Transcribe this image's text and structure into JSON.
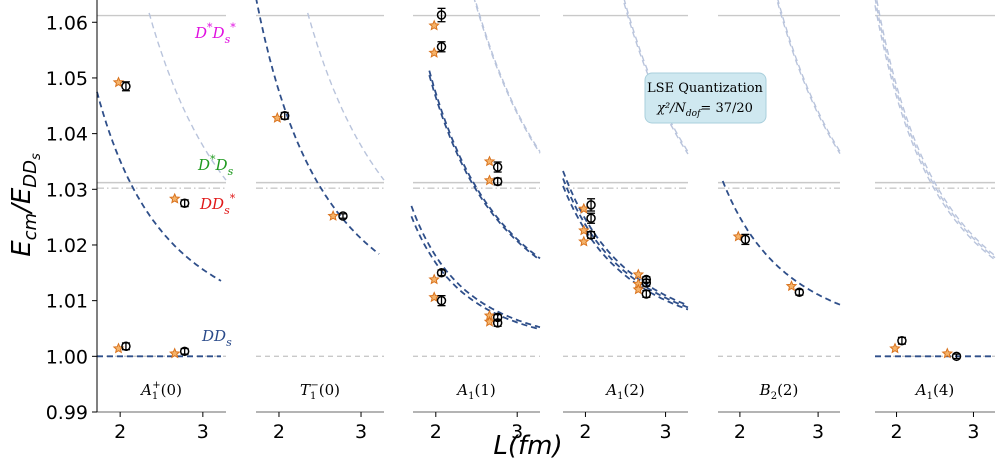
{
  "chart_data": {
    "type": "scatter",
    "title": "",
    "xlabel": "L(fm)",
    "ylabel": "E_cm/E_DDs",
    "ylim": [
      0.99,
      1.064
    ],
    "y_ticks": [
      "0.99",
      "1.00",
      "1.01",
      "1.02",
      "1.03",
      "1.04",
      "1.05",
      "1.06"
    ],
    "x_tick_labels": [
      "2",
      "3"
    ],
    "thresholds": [
      {
        "name": "D*Ds*",
        "label_main": "D",
        "value": 1.0612,
        "style": "solid",
        "color": "#c9c9c9",
        "label_color": "#e010e0"
      },
      {
        "name": "D*Ds",
        "label_main": "D",
        "value": 1.0312,
        "style": "solid",
        "color": "#c9c9c9",
        "label_color": "#1f9a1f"
      },
      {
        "name": "DDs*",
        "label_main": "DD",
        "value": 1.0302,
        "style": "dashdot",
        "color": "#c9c9c9",
        "label_color": "#e01818"
      },
      {
        "name": "DDs",
        "label_main": "DD",
        "value": 1.0,
        "style": "dashed",
        "color": "#c9c9c9",
        "label_color": "#2a4a8a"
      }
    ],
    "annotation": {
      "title": "LSE Quantization",
      "chi2_text": "χ²/N",
      "dof_sub": "dof",
      "chi2_value": "= 37/20"
    },
    "legend_markers": {
      "lattice": "circle with error bar (lattice)",
      "prediction": "orange star (LSE prediction)"
    },
    "panels": [
      {
        "label": "A1+(0)",
        "label_main": "A",
        "label_sub": "1",
        "label_sup": "+",
        "label_arg": "(0)",
        "points": [
          {
            "x": 2.07,
            "y": 1.0485,
            "err": 0.0008
          },
          {
            "x": 2.78,
            "y": 1.0275,
            "err": 0.0006
          },
          {
            "x": 2.07,
            "y": 1.0018,
            "err": 0.0006
          },
          {
            "x": 2.78,
            "y": 1.0009,
            "err": 0.0005
          }
        ],
        "stars": [
          {
            "x": 1.98,
            "y": 1.0492
          },
          {
            "x": 2.66,
            "y": 1.0283
          },
          {
            "x": 1.98,
            "y": 1.0014
          },
          {
            "x": 2.66,
            "y": 1.0005
          }
        ],
        "curves": [
          {
            "kind": "dark",
            "a": 0.1405,
            "p": 2.0,
            "xmin": 1.72,
            "xmax": 3.22
          },
          {
            "kind": "light",
            "a": 0.3406,
            "p": 2.0,
            "xmin": 2.35,
            "xmax": 3.28
          },
          {
            "kind": "flat",
            "a": 0.0,
            "p": 2.0,
            "xmin": 1.72,
            "xmax": 3.22
          }
        ]
      },
      {
        "label": "T1-(0)",
        "label_main": "T",
        "label_sub": "1",
        "label_sup": "−",
        "label_arg": "(0)",
        "points": [
          {
            "x": 2.07,
            "y": 1.0432,
            "err": 0.0006
          },
          {
            "x": 2.78,
            "y": 1.0252,
            "err": 0.0004
          }
        ],
        "stars": [
          {
            "x": 1.98,
            "y": 1.0428
          },
          {
            "x": 2.66,
            "y": 1.0252
          }
        ],
        "curves": [
          {
            "kind": "dark",
            "a": 0.1905,
            "p": 2.0,
            "xmin": 1.72,
            "xmax": 3.22
          },
          {
            "kind": "light",
            "a": 0.3406,
            "p": 2.0,
            "xmin": 2.35,
            "xmax": 3.28
          }
        ]
      },
      {
        "label": "A1(1)",
        "label_main": "A",
        "label_sub": "1",
        "label_sup": "",
        "label_arg": "(1)",
        "points": [
          {
            "x": 2.07,
            "y": 1.0613,
            "err": 0.0012
          },
          {
            "x": 2.07,
            "y": 1.0556,
            "err": 0.0009
          },
          {
            "x": 2.76,
            "y": 1.034,
            "err": 0.0009
          },
          {
            "x": 2.76,
            "y": 1.0314,
            "err": 0.0006
          },
          {
            "x": 2.07,
            "y": 1.015,
            "err": 0.0005
          },
          {
            "x": 2.07,
            "y": 1.01,
            "err": 0.0009
          },
          {
            "x": 2.76,
            "y": 1.007,
            "err": 0.0005
          },
          {
            "x": 2.76,
            "y": 1.006,
            "err": 0.0006
          }
        ],
        "stars": [
          {
            "x": 1.98,
            "y": 1.0594
          },
          {
            "x": 1.98,
            "y": 1.0545
          },
          {
            "x": 2.66,
            "y": 1.035
          },
          {
            "x": 2.66,
            "y": 1.0316
          },
          {
            "x": 1.98,
            "y": 1.0138
          },
          {
            "x": 1.98,
            "y": 1.0106
          },
          {
            "x": 2.66,
            "y": 1.0073
          },
          {
            "x": 2.66,
            "y": 1.0062
          }
        ],
        "curves": [
          {
            "kind": "dark",
            "a": 0.1862,
            "p": 2.0,
            "xmin": 1.92,
            "xmax": 3.28
          },
          {
            "kind": "dark",
            "a": 0.1892,
            "p": 2.0,
            "xmin": 1.92,
            "xmax": 3.28
          },
          {
            "kind": "dark",
            "a": 0.1018,
            "p": 2.5,
            "xmin": 1.7,
            "xmax": 3.28
          },
          {
            "kind": "dark",
            "a": 0.0948,
            "p": 2.5,
            "xmin": 1.7,
            "xmax": 3.28
          },
          {
            "kind": "light",
            "a": 0.3952,
            "p": 2.0,
            "xmin": 2.4,
            "xmax": 3.28
          },
          {
            "kind": "light",
            "a": 0.3925,
            "p": 2.0,
            "xmin": 2.4,
            "xmax": 3.28
          }
        ]
      },
      {
        "label": "A1(2)",
        "label_main": "A",
        "label_sub": "1",
        "label_sup": "",
        "label_arg": "(2)",
        "points": [
          {
            "x": 2.07,
            "y": 1.0272,
            "err": 0.0011
          },
          {
            "x": 2.07,
            "y": 1.0248,
            "err": 0.0009
          },
          {
            "x": 2.07,
            "y": 1.0218,
            "err": 0.0006
          },
          {
            "x": 2.76,
            "y": 1.0138,
            "err": 0.0005
          },
          {
            "x": 2.76,
            "y": 1.0132,
            "err": 0.0006
          },
          {
            "x": 2.76,
            "y": 1.0112,
            "err": 0.0006
          }
        ],
        "stars": [
          {
            "x": 1.98,
            "y": 1.0265
          },
          {
            "x": 1.98,
            "y": 1.0226
          },
          {
            "x": 1.98,
            "y": 1.0206
          },
          {
            "x": 2.66,
            "y": 1.0147
          },
          {
            "x": 2.66,
            "y": 1.013
          },
          {
            "x": 2.66,
            "y": 1.012
          }
        ],
        "curves": [
          {
            "kind": "dark",
            "a": 0.0985,
            "p": 2.0,
            "xmin": 1.72,
            "xmax": 3.28
          },
          {
            "kind": "dark",
            "a": 0.0945,
            "p": 2.0,
            "xmin": 1.72,
            "xmax": 3.28
          },
          {
            "kind": "dark",
            "a": 0.0905,
            "p": 2.0,
            "xmin": 1.72,
            "xmax": 3.28
          },
          {
            "kind": "light",
            "a": 0.3955,
            "p": 2.0,
            "xmin": 2.3,
            "xmax": 3.28
          },
          {
            "kind": "light",
            "a": 0.391,
            "p": 2.0,
            "xmin": 2.3,
            "xmax": 3.28
          }
        ]
      },
      {
        "label": "B2(2)",
        "label_main": "B",
        "label_sub": "2",
        "label_sup": "",
        "label_arg": "(2)",
        "points": [
          {
            "x": 2.07,
            "y": 1.021,
            "err": 0.0009
          },
          {
            "x": 2.76,
            "y": 1.0115,
            "err": 0.0005
          }
        ],
        "stars": [
          {
            "x": 1.98,
            "y": 1.0215
          },
          {
            "x": 2.66,
            "y": 1.0126
          }
        ],
        "curves": [
          {
            "kind": "dark",
            "a": 0.0998,
            "p": 2.0,
            "xmin": 1.78,
            "xmax": 3.28
          },
          {
            "kind": "light",
            "a": 0.3958,
            "p": 2.0,
            "xmin": 2.3,
            "xmax": 3.28
          },
          {
            "kind": "light",
            "a": 0.3918,
            "p": 2.0,
            "xmin": 2.3,
            "xmax": 3.28
          }
        ]
      },
      {
        "label": "A1(4)",
        "label_main": "A",
        "label_sub": "1",
        "label_sup": "",
        "label_arg": "(4)",
        "points": [
          {
            "x": 2.07,
            "y": 1.0028,
            "err": 0.0006
          },
          {
            "x": 2.78,
            "y": 1.0,
            "err": 0.0004
          }
        ],
        "stars": [
          {
            "x": 1.98,
            "y": 1.0014
          },
          {
            "x": 2.66,
            "y": 1.0005
          }
        ],
        "curves": [
          {
            "kind": "flat",
            "a": 0.0,
            "p": 2.0,
            "xmin": 1.72,
            "xmax": 3.28
          },
          {
            "kind": "light",
            "a": 0.1945,
            "p": 2.0,
            "xmin": 1.72,
            "xmax": 3.28
          },
          {
            "kind": "light",
            "a": 0.1905,
            "p": 2.0,
            "xmin": 1.72,
            "xmax": 3.28
          },
          {
            "kind": "light",
            "a": 0.1865,
            "p": 2.0,
            "xmin": 1.72,
            "xmax": 3.28
          }
        ]
      }
    ]
  }
}
